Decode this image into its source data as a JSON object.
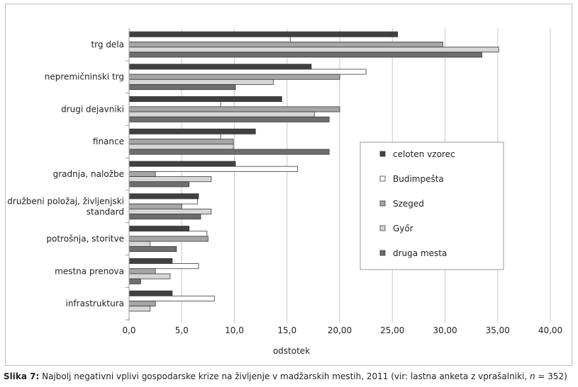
{
  "chart_data": {
    "type": "bar",
    "orientation": "horizontal",
    "title": "",
    "xlabel": "odstotek",
    "ylabel": "",
    "xlim": [
      0,
      40
    ],
    "x_ticks": [
      "0,0",
      "5,0",
      "10,0",
      "15,0",
      "20,00",
      "25,00",
      "30,00",
      "35,00",
      "40,00"
    ],
    "grid": "vertical",
    "legend_position": "right",
    "categories": [
      "trg dela",
      "nepremičninski trg",
      "drugi dejavniki",
      "finance",
      "gradnja, naložbe",
      "družbeni položaj, življenjski standard",
      "potrošnja, storitve",
      "mestna prenova",
      "infrastruktura"
    ],
    "series": [
      {
        "name": "celoten vzorec",
        "color": "#404040",
        "values": [
          25.5,
          17.3,
          14.5,
          12.0,
          10.1,
          6.6,
          5.7,
          4.1,
          4.1
        ]
      },
      {
        "name": "Budimpešta",
        "color": "#ffffff",
        "values": [
          15.3,
          22.5,
          8.7,
          8.7,
          16.0,
          6.5,
          7.4,
          6.6,
          8.1
        ]
      },
      {
        "name": "Szeged",
        "color": "#a6a6a6",
        "values": [
          29.8,
          20.0,
          20.0,
          9.9,
          2.5,
          5.0,
          7.5,
          2.5,
          2.5
        ]
      },
      {
        "name": "Győr",
        "color": "#d6d6d6",
        "values": [
          35.1,
          13.7,
          17.6,
          9.9,
          7.8,
          7.8,
          2.0,
          3.9,
          2.0
        ]
      },
      {
        "name": "druga mesta",
        "color": "#6e6e6e",
        "values": [
          33.5,
          10.1,
          19.0,
          19.0,
          5.7,
          6.8,
          4.5,
          1.1,
          0
        ]
      }
    ]
  },
  "caption": {
    "label": "Slika 7:",
    "text_before": " Najbolj negativni vplivi gospodarske krize na življenje v madžarskih mestih, 2011 (vir: lastna anketa z vprašalniki, ",
    "n_symbol": "n",
    "text_after": " = 352)"
  }
}
